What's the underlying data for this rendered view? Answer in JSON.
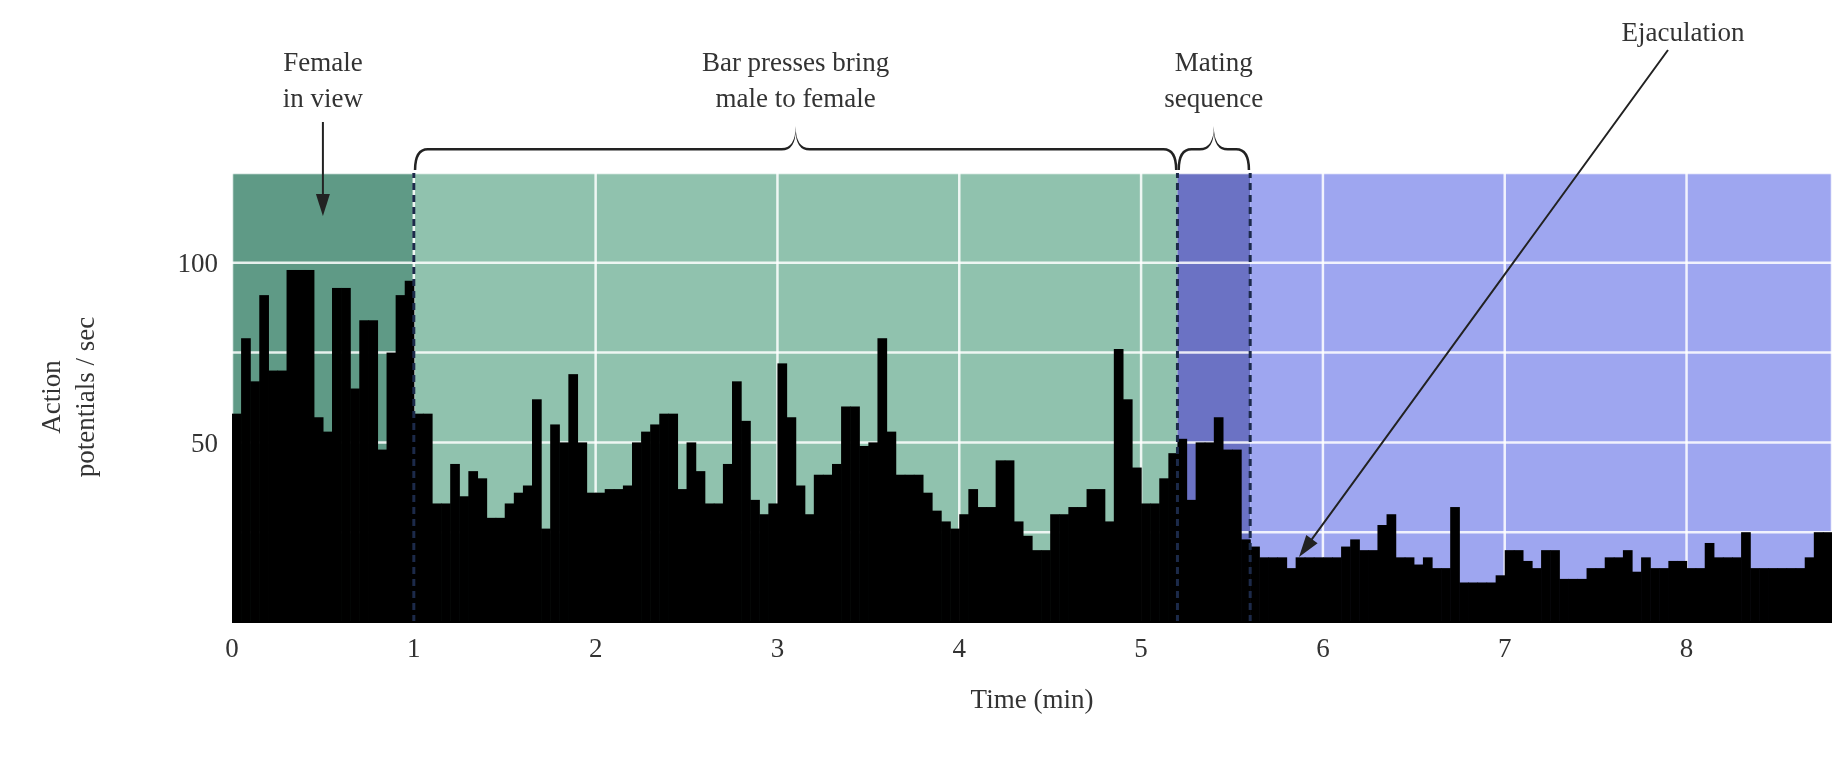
{
  "chart_data": {
    "type": "histogram",
    "xlabel": "Time (min)",
    "ylabel": "Action potentials / sec",
    "bins": [
      0,
      0.05,
      0.1,
      0.15,
      0.2,
      0.25,
      0.3,
      0.35,
      0.4,
      0.45,
      0.5,
      0.55,
      0.6,
      0.65,
      0.7,
      0.75,
      0.8,
      0.85,
      0.9,
      0.95,
      1,
      1.05,
      1.1,
      1.15,
      1.2,
      1.25,
      1.3,
      1.35,
      1.4,
      1.45,
      1.5,
      1.55,
      1.6,
      1.65,
      1.7,
      1.75,
      1.8,
      1.85,
      1.9,
      1.95,
      2,
      2.05,
      2.1,
      2.15,
      2.2,
      2.25,
      2.3,
      2.35,
      2.4,
      2.45,
      2.5,
      2.55,
      2.6,
      2.65,
      2.7,
      2.75,
      2.8,
      2.85,
      2.9,
      2.95,
      3,
      3.05,
      3.1,
      3.15,
      3.2,
      3.25,
      3.3,
      3.35,
      3.4,
      3.45,
      3.5,
      3.55,
      3.6,
      3.65,
      3.7,
      3.75,
      3.8,
      3.85,
      3.9,
      3.95,
      4,
      4.05,
      4.1,
      4.15,
      4.2,
      4.25,
      4.3,
      4.35,
      4.4,
      4.45,
      4.5,
      4.55,
      4.6,
      4.65,
      4.7,
      4.75,
      4.8,
      4.85,
      4.9,
      4.95,
      5,
      5.05,
      5.1,
      5.15,
      5.2,
      5.25,
      5.3,
      5.35,
      5.4,
      5.45,
      5.5,
      5.55,
      5.6,
      5.65,
      5.7,
      5.75,
      5.8,
      5.85,
      5.9,
      5.95,
      6,
      6.05,
      6.1,
      6.15,
      6.2,
      6.25,
      6.3,
      6.35,
      6.4,
      6.45,
      6.5,
      6.55,
      6.6,
      6.65,
      6.7,
      6.75,
      6.8,
      6.85,
      6.9,
      6.95,
      7,
      7.05,
      7.1,
      7.15,
      7.2,
      7.25,
      7.3,
      7.35,
      7.4,
      7.45,
      7.5,
      7.55,
      7.6,
      7.65,
      7.7,
      7.75,
      7.8,
      7.85,
      7.9,
      7.95,
      8,
      8.05,
      8.1,
      8.15,
      8.2,
      8.25,
      8.3,
      8.35,
      8.4,
      8.45,
      8.5,
      8.55,
      8.6,
      8.65,
      8.7,
      8.75,
      8.8
    ],
    "values": [
      58,
      79,
      67,
      91,
      70,
      70,
      98,
      98,
      98,
      57,
      53,
      93,
      93,
      65,
      84,
      84,
      48,
      75,
      91,
      95,
      58,
      58,
      33,
      33,
      44,
      35,
      42,
      40,
      29,
      29,
      33,
      36,
      38,
      62,
      26,
      55,
      50,
      69,
      50,
      36,
      36,
      37,
      37,
      38,
      50,
      53,
      55,
      58,
      58,
      37,
      50,
      42,
      33,
      33,
      44,
      67,
      56,
      34,
      30,
      33,
      72,
      57,
      38,
      30,
      41,
      41,
      44,
      60,
      60,
      49,
      50,
      79,
      53,
      41,
      41,
      41,
      36,
      31,
      28,
      26,
      30,
      37,
      32,
      32,
      45,
      45,
      28,
      24,
      20,
      20,
      30,
      30,
      32,
      32,
      37,
      37,
      28,
      76,
      62,
      43,
      33,
      33,
      40,
      47,
      51,
      34,
      50,
      50,
      57,
      48,
      48,
      23,
      21,
      18,
      18,
      18,
      15,
      18,
      18,
      18,
      18,
      18,
      21,
      23,
      20,
      20,
      27,
      30,
      18,
      18,
      16,
      18,
      15,
      15,
      32,
      11,
      11,
      11,
      11,
      13,
      20,
      20,
      17,
      15,
      20,
      20,
      12,
      12,
      12,
      15,
      15,
      18,
      18,
      20,
      14,
      18,
      15,
      15,
      17,
      17,
      15,
      15,
      22,
      18,
      18,
      18,
      25,
      15,
      15,
      15,
      15,
      15,
      15,
      18,
      25,
      25
    ],
    "color": "#000000",
    "xlim": [
      0,
      8.8
    ],
    "xticks": [
      0,
      1,
      2,
      3,
      4,
      5,
      6,
      7,
      8
    ],
    "ylim": [
      0,
      125
    ],
    "yticks": [
      {
        "value": 25,
        "label": null
      },
      50,
      {
        "value": 75,
        "label": null
      },
      100
    ],
    "grid": true,
    "bands": [
      {
        "axis": "x",
        "from": 0,
        "to": 1,
        "label": "Female in view",
        "color": "#5f9a86"
      },
      {
        "axis": "x",
        "from": 1,
        "to": 5.2,
        "label": "Bar presses bring male to female",
        "color": "#90c2ae"
      },
      {
        "axis": "x",
        "from": 5.2,
        "to": 5.6,
        "label": "Mating sequence",
        "color": "#6b72c4"
      },
      {
        "axis": "x",
        "from": 5.6,
        "to": 8.8,
        "color": "#9ea6f0"
      }
    ],
    "ref_lines": [
      {
        "axis": "x",
        "value": 1,
        "color": "#1c2a4a",
        "line_style": "dashed"
      },
      {
        "axis": "x",
        "value": 5.2,
        "color": "#1c2a4a",
        "line_style": "dashed"
      },
      {
        "axis": "x",
        "value": 5.6,
        "color": "#1c2a4a",
        "line_style": "dashed"
      }
    ],
    "annotations": [
      "Ejaculation"
    ]
  }
}
